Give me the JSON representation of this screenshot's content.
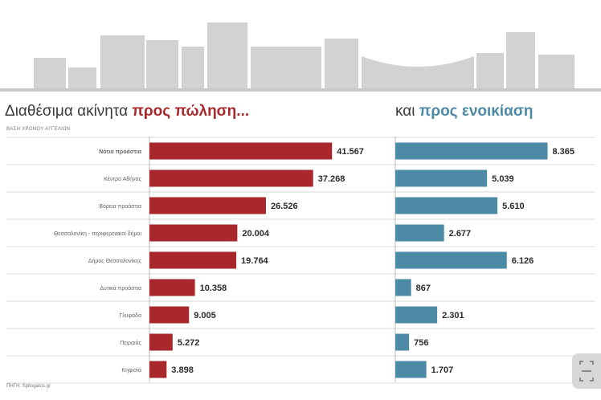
{
  "titles": {
    "left_plain": "Διαθέσιμα ακίνητα ",
    "left_emph": "προς πώληση...",
    "right_plain": "και ",
    "right_emph": "προς ενοικίαση"
  },
  "subtitle": "ΒΑΣΗ ΧΡΟΝΟΥ ΑΓΓΕΛΙΩΝ",
  "source": "ΠΗΓΗ: Spitogatos.gr",
  "colors": {
    "sale": "#a8282c",
    "rent": "#4d8aa6",
    "grid": "#d9d9d9",
    "label": "#666666",
    "skyline": "#d2d2d2"
  },
  "icons": {
    "scan": "scan-icon"
  },
  "chart_data": [
    {
      "type": "bar",
      "orientation": "horizontal",
      "title": "προς πώληση...",
      "categories": [
        "Νότια προάστια",
        "Κέντρο Αθήνας",
        "Βόρεια προάστια",
        "Θεσσαλονίκη - περιφερειακοί δήμοι",
        "Δήμος Θεσσαλονίκης",
        "Δυτικά προάστια",
        "Γλυφάδα",
        "Πειραιάς",
        "Κηφισιά"
      ],
      "values": [
        41567,
        37268,
        26526,
        20004,
        19764,
        10358,
        9005,
        5272,
        3898
      ],
      "value_labels": [
        "41.567",
        "37.268",
        "26.526",
        "20.004",
        "19.764",
        "10.358",
        "9.005",
        "5.272",
        "3.898"
      ],
      "xlim": [
        0,
        45000
      ],
      "color": "#a8282c"
    },
    {
      "type": "bar",
      "orientation": "horizontal",
      "title": "προς ενοικίαση",
      "categories": [
        "Νότια προάστια",
        "Κέντρο Αθήνας",
        "Βόρεια προάστια",
        "Θεσσαλονίκη - περιφερειακοί δήμοι",
        "Δήμος Θεσσαλονίκης",
        "Δυτικά προάστια",
        "Γλυφάδα",
        "Πειραιάς",
        "Κηφισιά"
      ],
      "values": [
        8365,
        5039,
        5610,
        2677,
        6126,
        867,
        2301,
        756,
        1707
      ],
      "value_labels": [
        "8.365",
        "5.039",
        "5.610",
        "2.677",
        "6.126",
        "867",
        "2.301",
        "756",
        "1.707"
      ],
      "xlim": [
        0,
        9800
      ],
      "color": "#4d8aa6"
    }
  ]
}
